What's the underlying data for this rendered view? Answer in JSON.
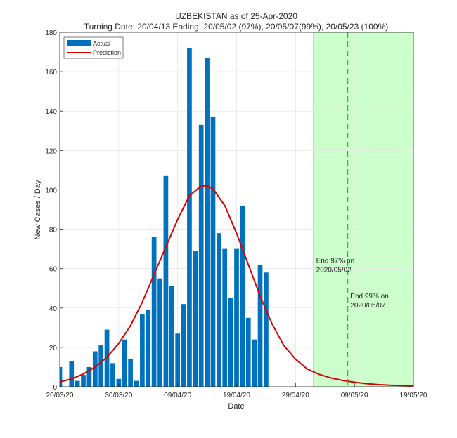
{
  "chart_data": {
    "type": "bar",
    "title": "UZBEKISTAN as of 25-Apr-2020",
    "subtitle": "Turning Date: 20/04/13  Ending: 20/05/02 (97%), 20/05/07(99%), 20/05/23 (100%)",
    "xlabel": "Date",
    "ylabel": "New Cases / Day",
    "xlim": [
      0,
      60
    ],
    "ylim": [
      0,
      180
    ],
    "yticks": [
      0,
      20,
      40,
      60,
      80,
      100,
      120,
      140,
      160,
      180
    ],
    "xticks": [
      {
        "day": 0,
        "label": "20/03/20"
      },
      {
        "day": 10,
        "label": "30/03/20"
      },
      {
        "day": 20,
        "label": "09/04/20"
      },
      {
        "day": 30,
        "label": "19/04/20"
      },
      {
        "day": 40,
        "label": "29/04/20"
      },
      {
        "day": 50,
        "label": "09/05/20"
      },
      {
        "day": 60,
        "label": "19/05/20"
      }
    ],
    "grid": true,
    "legend": {
      "position": "top-left",
      "entries": [
        "Actual",
        "Prediction"
      ]
    },
    "colors": {
      "actual": "#0072BD",
      "prediction": "#D90000",
      "shade": "#CCFFCC",
      "end_line": "#00DD00"
    },
    "series": [
      {
        "name": "Actual",
        "type": "bar",
        "days": [
          0,
          1,
          2,
          3,
          4,
          5,
          6,
          7,
          8,
          9,
          10,
          11,
          12,
          13,
          14,
          15,
          16,
          17,
          18,
          19,
          20,
          21,
          22,
          23,
          24,
          25,
          26,
          27,
          28,
          29,
          30,
          31,
          32,
          33,
          34,
          35,
          36
        ],
        "values": [
          10,
          0,
          13,
          3,
          6,
          10,
          18,
          21,
          29,
          12,
          4,
          24,
          14,
          3,
          37,
          39,
          76,
          55,
          107,
          51,
          27,
          42,
          172,
          69,
          133,
          167,
          137,
          78,
          70,
          45,
          70,
          92,
          35,
          24,
          62,
          58,
          0
        ]
      },
      {
        "name": "Prediction",
        "type": "line",
        "days": [
          0,
          2,
          4,
          6,
          8,
          10,
          12,
          14,
          16,
          18,
          20,
          22,
          24,
          25,
          26,
          28,
          30,
          32,
          34,
          36,
          38,
          40,
          42,
          44,
          46,
          48,
          50,
          52,
          54,
          56,
          58,
          60
        ],
        "values": [
          2.5,
          4,
          6.5,
          10,
          15,
          22,
          31,
          43,
          57,
          71,
          85,
          97,
          102,
          102,
          100.5,
          92,
          78,
          62,
          46,
          32,
          21,
          14,
          9,
          6.3,
          4.5,
          3.2,
          2.3,
          1.6,
          1.1,
          0.8,
          0.6,
          0.5
        ]
      }
    ],
    "shaded_region": {
      "from_day": 43,
      "to_day": 60
    },
    "end_line": {
      "day": 48.8
    },
    "annotations": [
      {
        "day": 43.5,
        "value": 63,
        "lines": [
          "End 97% on",
          "2020/05/02"
        ]
      },
      {
        "day": 49.3,
        "value": 45,
        "lines": [
          "End 99% on",
          "2020/05/07"
        ]
      }
    ]
  }
}
